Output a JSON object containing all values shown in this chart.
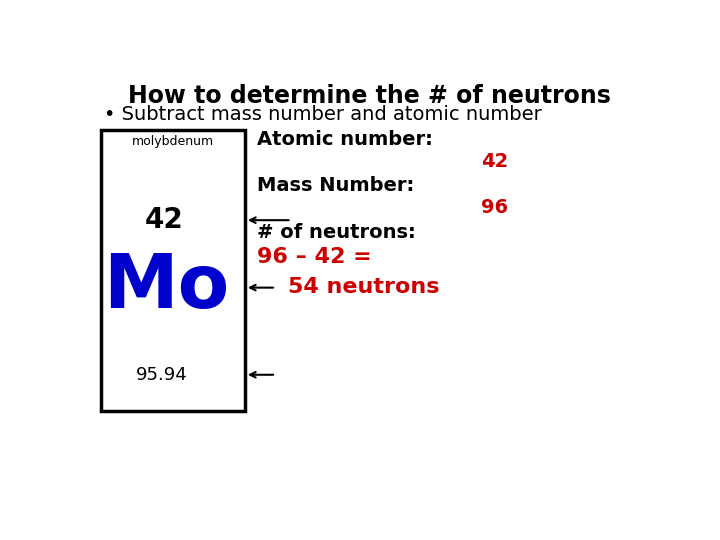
{
  "title": "How to determine the # of neutrons",
  "subtitle": "• Subtract mass number and atomic number",
  "title_fontsize": 17,
  "subtitle_fontsize": 14,
  "bg_color": "#ffffff",
  "title_color": "#000000",
  "subtitle_color": "#000000",
  "element_name": "molybdenum",
  "element_symbol": "Mo",
  "element_atomic": "42",
  "element_mass": "95.94",
  "element_name_color": "#000000",
  "element_atomic_color": "#000000",
  "element_symbol_color": "#0000cc",
  "element_mass_color": "#000000",
  "box_color": "#000000",
  "label_atomic_number": "Atomic number:",
  "value_atomic_number": "42",
  "label_mass_number": "Mass Number:",
  "value_mass_number": "96",
  "label_neutrons": "# of neutrons:",
  "value_calc": "96 – 42 =",
  "value_result": "54 neutrons",
  "label_color": "#000000",
  "value_color": "#cc0000",
  "label_fontsize": 14,
  "value_fontsize": 14,
  "result_fontsize": 16
}
